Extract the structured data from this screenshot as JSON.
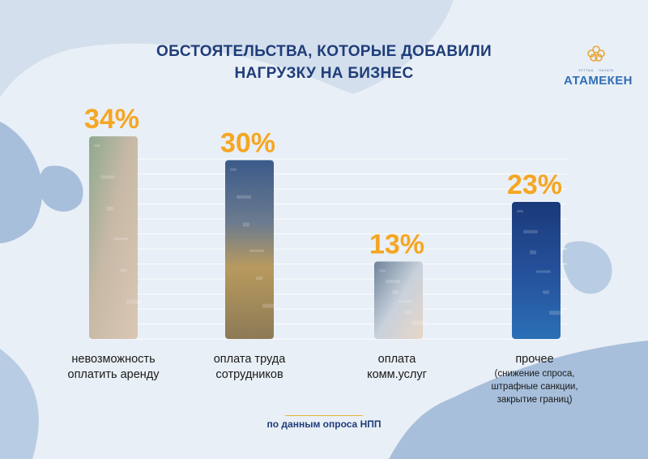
{
  "header": {
    "title_line1": "ОБСТОЯТЕЛЬСТВА, КОТОРЫЕ ДОБАВИЛИ",
    "title_line2": "НАГРУЗКУ НА БИЗНЕС"
  },
  "logo": {
    "small_left": "ҰЛТТЫҚ",
    "small_right": "ПАЛАТА",
    "word": "АТАМЕКЕН"
  },
  "footer": {
    "source": "по данным опроса НПП"
  },
  "colors": {
    "accent": "#f5a623",
    "title": "#1f3d7a",
    "background": "#d3dfec"
  },
  "categories": [
    {
      "line1": "невозможность",
      "line2": "оплатить аренду",
      "sub": []
    },
    {
      "line1": "оплата труда",
      "line2": "сотрудников",
      "sub": []
    },
    {
      "line1": "оплата",
      "line2": "комм.услуг",
      "sub": []
    },
    {
      "line1": "прочее",
      "line2": "",
      "sub": [
        "(снижение спроса,",
        "штрафные санкции,",
        "закрытие границ)"
      ]
    }
  ],
  "chart_data": {
    "type": "bar",
    "categories": [
      "невозможность оплатить аренду",
      "оплата труда сотрудников",
      "оплата комм.услуг",
      "прочее"
    ],
    "values": [
      34,
      30,
      13,
      23
    ],
    "value_labels": [
      "34%",
      "30%",
      "13%",
      "23%"
    ],
    "ylim": [
      0,
      40
    ],
    "grid": true,
    "value_label_color": "#f5a623",
    "bar_fills": [
      "photo-hands-keys",
      "photo-coins",
      "photo-card-keyboard",
      "photo-finance-chart"
    ]
  }
}
